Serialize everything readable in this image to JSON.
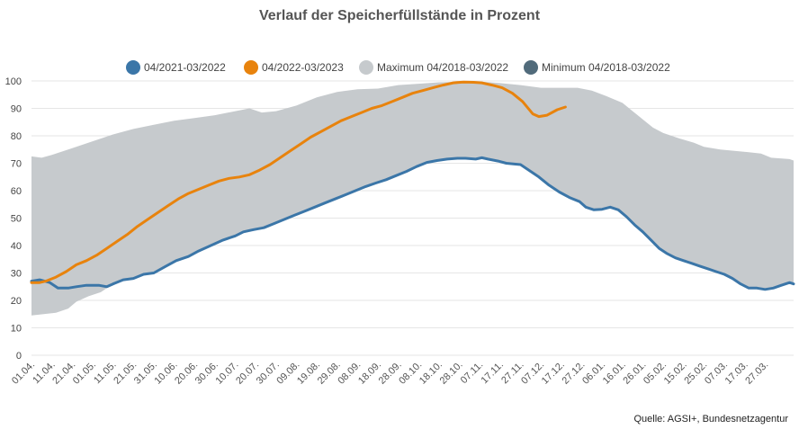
{
  "chart_data": {
    "type": "area",
    "title": "Verlauf der Speicherfüllstände in Prozent",
    "source": "Quelle: AGSI+, Bundesnetzagentur",
    "ylim": [
      0,
      100
    ],
    "yticks": [
      "0",
      "10",
      "20",
      "30",
      "40",
      "50",
      "60",
      "70",
      "80",
      "90",
      "100"
    ],
    "xticks": [
      "01.04.",
      "11.04.",
      "21.04.",
      "01.05.",
      "11.05.",
      "21.05.",
      "31.05.",
      "10.06.",
      "20.06.",
      "30.06.",
      "10.07.",
      "20.07.",
      "30.07.",
      "09.08.",
      "19.08.",
      "29.08.",
      "08.09.",
      "18.09.",
      "28.09.",
      "08.10.",
      "18.10.",
      "28.10.",
      "07.11.",
      "17.11.",
      "27.11.",
      "07.12.",
      "17.12.",
      "27.12.",
      "06.01.",
      "16.01.",
      "26.01.",
      "05.02.",
      "15.02.",
      "25.02.",
      "07.03.",
      "17.03.",
      "27.03."
    ],
    "x_domain_days": [
      0,
      364
    ],
    "series": [
      {
        "name": "04/2021-03/2022",
        "color": "#3b76a8",
        "kind": "line",
        "points": [
          [
            0,
            27
          ],
          [
            4,
            27.5
          ],
          [
            9,
            26.5
          ],
          [
            13,
            24.5
          ],
          [
            18,
            24.5
          ],
          [
            22,
            25
          ],
          [
            27,
            25.5
          ],
          [
            33,
            25.5
          ],
          [
            37,
            25
          ],
          [
            40,
            26
          ],
          [
            45,
            27.5
          ],
          [
            50,
            28
          ],
          [
            55,
            29.5
          ],
          [
            60,
            30
          ],
          [
            66,
            32.5
          ],
          [
            71,
            34.5
          ],
          [
            77,
            36
          ],
          [
            82,
            38
          ],
          [
            88,
            40
          ],
          [
            94,
            42
          ],
          [
            100,
            43.5
          ],
          [
            104,
            45
          ],
          [
            109,
            45.8
          ],
          [
            114,
            46.5
          ],
          [
            119,
            48
          ],
          [
            124,
            49.5
          ],
          [
            129,
            51
          ],
          [
            134,
            52.5
          ],
          [
            139,
            54
          ],
          [
            144,
            55.5
          ],
          [
            149,
            57
          ],
          [
            154,
            58.5
          ],
          [
            159,
            60
          ],
          [
            164,
            61.5
          ],
          [
            169,
            62.8
          ],
          [
            174,
            64
          ],
          [
            179,
            65.5
          ],
          [
            184,
            67
          ],
          [
            189,
            68.8
          ],
          [
            194,
            70.3
          ],
          [
            199,
            71
          ],
          [
            204,
            71.5
          ],
          [
            209,
            71.8
          ],
          [
            213,
            71.8
          ],
          [
            218,
            71.5
          ],
          [
            221,
            72
          ],
          [
            224,
            71.5
          ],
          [
            229,
            70.8
          ],
          [
            233,
            70
          ],
          [
            237,
            69.7
          ],
          [
            240,
            69.5
          ],
          [
            244,
            67.5
          ],
          [
            249,
            65
          ],
          [
            254,
            62
          ],
          [
            259,
            59.5
          ],
          [
            264,
            57.5
          ],
          [
            269,
            56
          ],
          [
            272,
            54
          ],
          [
            276,
            53
          ],
          [
            280,
            53.2
          ],
          [
            284,
            54
          ],
          [
            288,
            53
          ],
          [
            292,
            50.5
          ],
          [
            296,
            47.5
          ],
          [
            300,
            45
          ],
          [
            304,
            42
          ],
          [
            308,
            39
          ],
          [
            312,
            37
          ],
          [
            316,
            35.5
          ],
          [
            320,
            34.5
          ],
          [
            324,
            33.5
          ],
          [
            328,
            32.5
          ],
          [
            332,
            31.5
          ],
          [
            336,
            30.5
          ],
          [
            340,
            29.5
          ],
          [
            344,
            28
          ],
          [
            348,
            26
          ],
          [
            352,
            24.5
          ],
          [
            356,
            24.5
          ],
          [
            360,
            24
          ],
          [
            364,
            24.5
          ],
          [
            368,
            25.5
          ],
          [
            372,
            26.5
          ],
          [
            374,
            26
          ]
        ]
      },
      {
        "name": "04/2022-03/2023",
        "color": "#e8830d",
        "kind": "line",
        "points": [
          [
            0,
            26.5
          ],
          [
            4,
            26.5
          ],
          [
            7,
            27
          ],
          [
            12,
            28.5
          ],
          [
            17,
            30.5
          ],
          [
            22,
            33
          ],
          [
            27,
            34.5
          ],
          [
            32,
            36.5
          ],
          [
            37,
            39
          ],
          [
            42,
            41.5
          ],
          [
            47,
            44
          ],
          [
            52,
            47
          ],
          [
            57,
            49.5
          ],
          [
            62,
            52
          ],
          [
            67,
            54.5
          ],
          [
            72,
            57
          ],
          [
            77,
            59
          ],
          [
            82,
            60.5
          ],
          [
            87,
            62
          ],
          [
            92,
            63.5
          ],
          [
            97,
            64.5
          ],
          [
            102,
            65
          ],
          [
            107,
            65.8
          ],
          [
            112,
            67.5
          ],
          [
            117,
            69.5
          ],
          [
            122,
            72
          ],
          [
            127,
            74.5
          ],
          [
            132,
            77
          ],
          [
            137,
            79.5
          ],
          [
            142,
            81.5
          ],
          [
            147,
            83.5
          ],
          [
            152,
            85.5
          ],
          [
            157,
            87
          ],
          [
            162,
            88.5
          ],
          [
            167,
            90
          ],
          [
            172,
            91
          ],
          [
            177,
            92.5
          ],
          [
            182,
            94
          ],
          [
            187,
            95.5
          ],
          [
            192,
            96.5
          ],
          [
            197,
            97.5
          ],
          [
            202,
            98.5
          ],
          [
            207,
            99.3
          ],
          [
            212,
            99.6
          ],
          [
            217,
            99.5
          ],
          [
            221,
            99.3
          ],
          [
            226,
            98.5
          ],
          [
            231,
            97.5
          ],
          [
            236,
            95.5
          ],
          [
            241,
            92.5
          ],
          [
            246,
            88
          ],
          [
            249,
            87
          ],
          [
            253,
            87.5
          ],
          [
            258,
            89.5
          ],
          [
            262,
            90.5
          ]
        ]
      },
      {
        "name": "Maximum 04/2018-03/2022",
        "color": "#c6cacd",
        "kind": "band-upper",
        "points": [
          [
            0,
            72.5
          ],
          [
            5,
            72
          ],
          [
            10,
            73
          ],
          [
            20,
            75.5
          ],
          [
            30,
            78
          ],
          [
            40,
            80.5
          ],
          [
            50,
            82.5
          ],
          [
            60,
            84
          ],
          [
            70,
            85.5
          ],
          [
            80,
            86.5
          ],
          [
            90,
            87.5
          ],
          [
            100,
            89
          ],
          [
            107,
            90
          ],
          [
            113,
            88.5
          ],
          [
            120,
            89
          ],
          [
            130,
            91
          ],
          [
            140,
            94
          ],
          [
            150,
            96
          ],
          [
            160,
            97
          ],
          [
            170,
            97.2
          ],
          [
            180,
            98.5
          ],
          [
            190,
            99
          ],
          [
            200,
            99.5
          ],
          [
            210,
            99.7
          ],
          [
            220,
            99.8
          ],
          [
            230,
            99.2
          ],
          [
            240,
            98.5
          ],
          [
            250,
            97.5
          ],
          [
            260,
            97.5
          ],
          [
            268,
            97.5
          ],
          [
            275,
            96.5
          ],
          [
            282,
            94.5
          ],
          [
            290,
            92
          ],
          [
            295,
            89
          ],
          [
            300,
            86
          ],
          [
            305,
            83
          ],
          [
            310,
            81
          ],
          [
            318,
            79
          ],
          [
            325,
            77.5
          ],
          [
            330,
            76
          ],
          [
            338,
            75
          ],
          [
            345,
            74.5
          ],
          [
            352,
            74
          ],
          [
            358,
            73.5
          ],
          [
            363,
            72
          ],
          [
            372,
            71.5
          ],
          [
            374,
            71
          ]
        ]
      },
      {
        "name": "Minimum 04/2018-03/2022",
        "color": "#516b7b",
        "kind": "band-lower",
        "points": [
          [
            0,
            14.5
          ],
          [
            6,
            15
          ],
          [
            12,
            15.5
          ],
          [
            18,
            17
          ],
          [
            22,
            19.5
          ],
          [
            28,
            21.5
          ],
          [
            34,
            23
          ],
          [
            40,
            26
          ],
          [
            45,
            27.5
          ],
          [
            50,
            28
          ],
          [
            55,
            29.5
          ],
          [
            60,
            30
          ],
          [
            66,
            32.5
          ],
          [
            71,
            34.5
          ],
          [
            77,
            36
          ],
          [
            82,
            38
          ],
          [
            88,
            40
          ],
          [
            94,
            42
          ],
          [
            100,
            43.5
          ],
          [
            104,
            45
          ],
          [
            109,
            45.8
          ],
          [
            114,
            46.5
          ],
          [
            119,
            48
          ],
          [
            124,
            49.5
          ],
          [
            129,
            51
          ],
          [
            134,
            52.5
          ],
          [
            139,
            54
          ],
          [
            144,
            55.5
          ],
          [
            149,
            57
          ],
          [
            154,
            58.5
          ],
          [
            159,
            60
          ],
          [
            164,
            61.5
          ],
          [
            169,
            62.8
          ],
          [
            174,
            64
          ],
          [
            179,
            65.5
          ],
          [
            184,
            67
          ],
          [
            189,
            68.8
          ],
          [
            194,
            70.3
          ],
          [
            199,
            71
          ],
          [
            204,
            71.5
          ],
          [
            209,
            71.8
          ],
          [
            213,
            71.8
          ],
          [
            218,
            71.5
          ],
          [
            221,
            72
          ],
          [
            224,
            71.5
          ],
          [
            229,
            70.8
          ],
          [
            233,
            70
          ],
          [
            237,
            69.7
          ],
          [
            240,
            69.5
          ],
          [
            244,
            67.5
          ],
          [
            249,
            65
          ],
          [
            254,
            62
          ],
          [
            259,
            59.5
          ],
          [
            264,
            57.5
          ],
          [
            269,
            56
          ],
          [
            272,
            54
          ],
          [
            276,
            53
          ],
          [
            280,
            53.2
          ],
          [
            284,
            54
          ],
          [
            288,
            53
          ],
          [
            292,
            50.5
          ],
          [
            296,
            47.5
          ],
          [
            300,
            45
          ],
          [
            304,
            42
          ],
          [
            308,
            39
          ],
          [
            312,
            37
          ],
          [
            316,
            35.5
          ],
          [
            320,
            34.5
          ],
          [
            324,
            33.5
          ],
          [
            328,
            32.5
          ],
          [
            332,
            31.5
          ],
          [
            336,
            30.5
          ],
          [
            340,
            29.5
          ],
          [
            344,
            28
          ],
          [
            348,
            26
          ],
          [
            352,
            24.5
          ],
          [
            356,
            24.5
          ],
          [
            360,
            24
          ],
          [
            364,
            24.5
          ],
          [
            368,
            25.5
          ],
          [
            372,
            26
          ],
          [
            374,
            26
          ]
        ]
      }
    ],
    "legend_position": "top-center",
    "grid": true
  }
}
